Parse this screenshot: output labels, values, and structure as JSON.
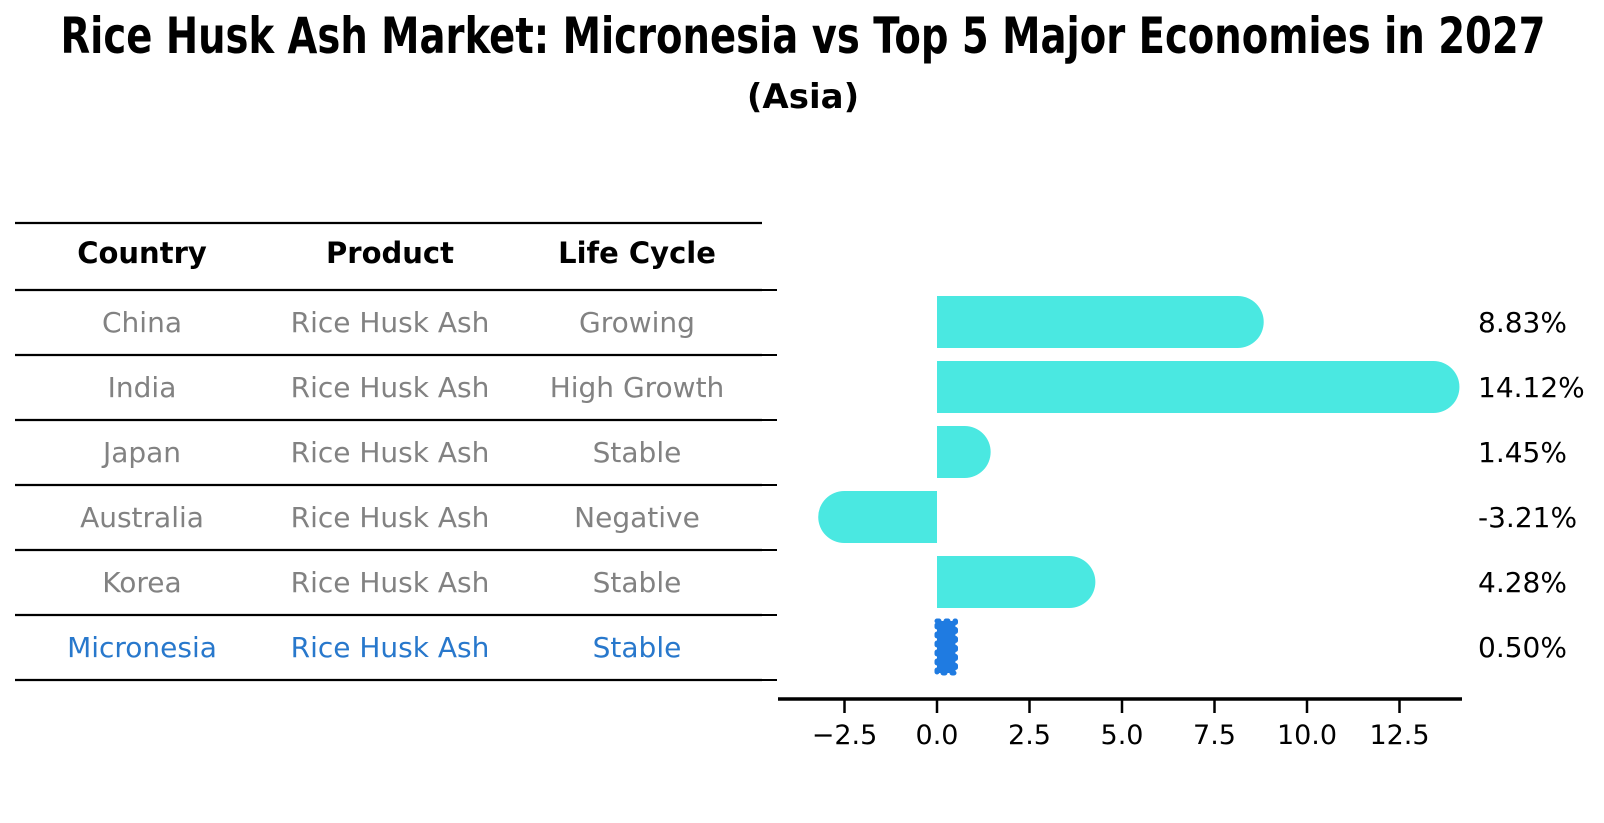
{
  "title": "Rice Husk Ash Market: Micronesia vs Top 5 Major Economies in 2027",
  "subtitle": "(Asia)",
  "table": {
    "headers": [
      "Country",
      "Product",
      "Life Cycle"
    ],
    "rows": [
      {
        "country": "China",
        "product": "Rice Husk Ash",
        "life_cycle": "Growing",
        "highlight": false
      },
      {
        "country": "India",
        "product": "Rice Husk Ash",
        "life_cycle": "High Growth",
        "highlight": false
      },
      {
        "country": "Japan",
        "product": "Rice Husk Ash",
        "life_cycle": "Stable",
        "highlight": false
      },
      {
        "country": "Australia",
        "product": "Rice Husk Ash",
        "life_cycle": "Negative",
        "highlight": false
      },
      {
        "country": "Korea",
        "product": "Rice Husk Ash",
        "life_cycle": "Stable",
        "highlight": false
      },
      {
        "country": "Micronesia",
        "product": "Rice Husk Ash",
        "life_cycle": "Stable",
        "highlight": true
      }
    ]
  },
  "chart_data": {
    "type": "bar",
    "orientation": "horizontal",
    "title": "Rice Husk Ash Market: Micronesia vs Top 5 Major Economies in 2027",
    "subtitle": "(Asia)",
    "categories": [
      "China",
      "India",
      "Japan",
      "Australia",
      "Korea",
      "Micronesia"
    ],
    "values": [
      8.83,
      14.12,
      1.45,
      -3.21,
      4.28,
      0.5
    ],
    "value_labels": [
      "8.83%",
      "14.12%",
      "1.45%",
      "-3.21%",
      "4.28%",
      "0.50%"
    ],
    "xticks": [
      -2.5,
      0.0,
      2.5,
      5.0,
      7.5,
      10.0,
      12.5
    ],
    "xtick_labels": [
      "−2.5",
      "0.0",
      "2.5",
      "5.0",
      "7.5",
      "10.0",
      "12.5"
    ],
    "xlim": [
      -4.3,
      14.2
    ],
    "grid": false,
    "legend": "none",
    "bar_color": "#4AE8E1",
    "highlight_color": "#1F7BE1",
    "highlight_index": 5,
    "unit": "%"
  },
  "colors": {
    "muted_text": "#828282",
    "highlight_text": "#2878CC",
    "bar": "#4AE8E1",
    "highlight_bar": "#1F7BE1",
    "axis": "#000000"
  }
}
